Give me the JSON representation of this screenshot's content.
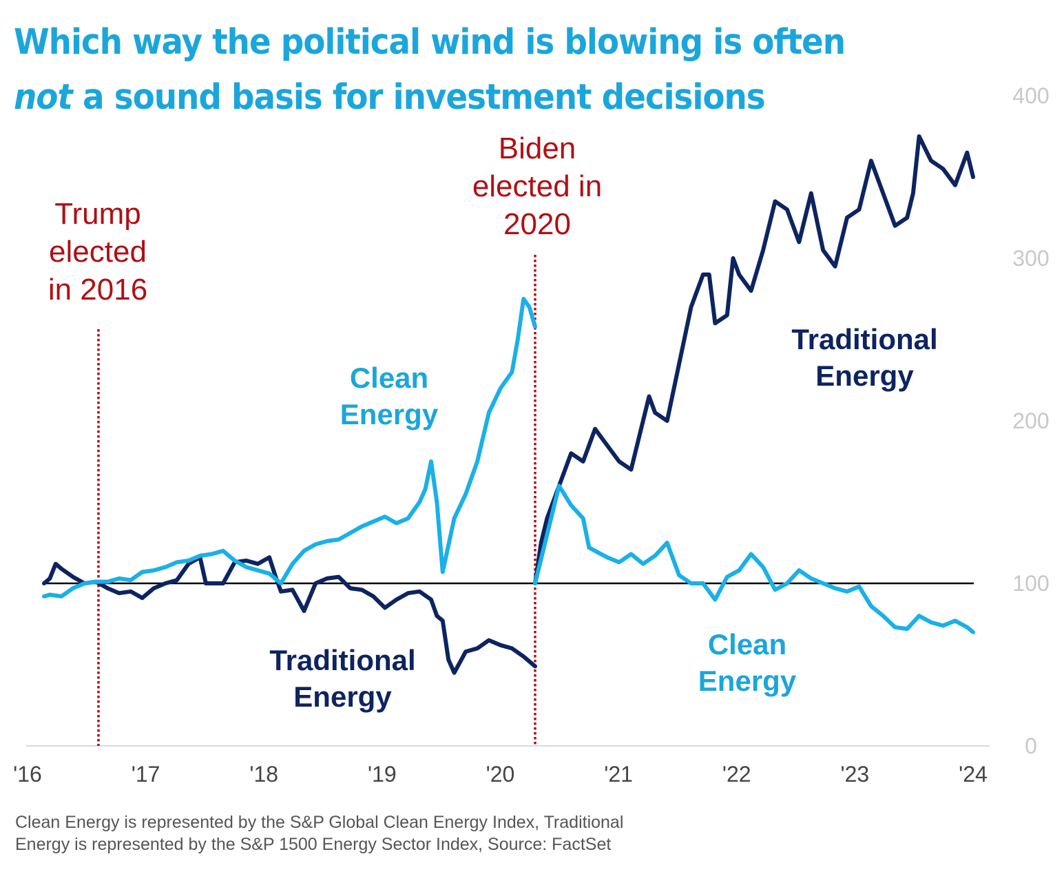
{
  "title": {
    "line1": "Which way the political wind is blowing is often",
    "line2_em": "not",
    "line2_rest": " a sound basis for investment decisions"
  },
  "annotations": {
    "trump": [
      "Trump",
      "elected",
      "in 2016"
    ],
    "biden": [
      "Biden",
      "elected in",
      "2020"
    ],
    "clean_energy_1": [
      "Clean",
      "Energy"
    ],
    "traditional_energy_1": [
      "Traditional",
      "Energy"
    ],
    "traditional_energy_2": [
      "Traditional",
      "Energy"
    ],
    "clean_energy_2": [
      "Clean",
      "Energy"
    ]
  },
  "footnote": {
    "line1": "Clean Energy is represented by the S&P Global Clean Energy Index, Traditional",
    "line2": "Energy is represented by the S&P 1500 Energy Sector Index, Source: FactSet"
  },
  "colors": {
    "clean": "#1ab0e8",
    "traditional": "#0d2461",
    "election_line": "#b10f14",
    "baseline": "#000000",
    "axis": "#d9d9d9",
    "ytick": "#c8c8c8",
    "xtick": "#444444"
  },
  "chart_data": {
    "type": "line",
    "title": "Which way the political wind is blowing is often not a sound basis for investment decisions",
    "xlabel": "",
    "ylabel": "",
    "x_ticks": [
      "'16",
      "'17",
      "'18",
      "'19",
      "'20",
      "'21",
      "'22",
      "'23",
      "'24"
    ],
    "x_range": [
      2016.0,
      2024.0
    ],
    "y_ticks": [
      0,
      100,
      200,
      300,
      400
    ],
    "y_range": [
      0,
      400
    ],
    "y_axis_side": "right",
    "grid": false,
    "baseline": 100,
    "events": [
      {
        "label": "Trump elected in 2016",
        "x": 2016.6
      },
      {
        "label": "Biden elected in 2020",
        "x": 2020.08
      }
    ],
    "series": [
      {
        "name": "Clean Energy",
        "period": "2016-2020",
        "x": [
          2016.15,
          2016.2,
          2016.3,
          2016.4,
          2016.5,
          2016.6,
          2016.7,
          2016.8,
          2016.9,
          2017.0,
          2017.1,
          2017.2,
          2017.3,
          2017.4,
          2017.5,
          2017.6,
          2017.7,
          2017.8,
          2017.9,
          2018.0,
          2018.1,
          2018.2,
          2018.3,
          2018.4,
          2018.5,
          2018.6,
          2018.7,
          2018.8,
          2018.9,
          2019.0,
          2019.1,
          2019.2,
          2019.3,
          2019.4,
          2019.45,
          2019.5,
          2019.55,
          2019.6,
          2019.7,
          2019.8,
          2019.9,
          2020.0,
          2020.1,
          2020.2,
          2020.25,
          2020.3,
          2020.35,
          2020.4
        ],
        "values": [
          92,
          93,
          92,
          97,
          100,
          101,
          101,
          103,
          102,
          107,
          108,
          110,
          113,
          114,
          117,
          118,
          120,
          114,
          110,
          108,
          106,
          100,
          112,
          120,
          124,
          126,
          127,
          131,
          135,
          138,
          141,
          137,
          140,
          150,
          158,
          175,
          150,
          107,
          140,
          155,
          175,
          205,
          220,
          230,
          250,
          275,
          270,
          258
        ]
      },
      {
        "name": "Traditional Energy",
        "period": "2016-2020",
        "x": [
          2016.15,
          2016.2,
          2016.25,
          2016.3,
          2016.4,
          2016.5,
          2016.6,
          2016.7,
          2016.8,
          2016.9,
          2017.0,
          2017.1,
          2017.2,
          2017.3,
          2017.4,
          2017.5,
          2017.55,
          2017.6,
          2017.7,
          2017.8,
          2017.9,
          2018.0,
          2018.1,
          2018.15,
          2018.2,
          2018.3,
          2018.4,
          2018.5,
          2018.6,
          2018.7,
          2018.8,
          2018.9,
          2019.0,
          2019.1,
          2019.2,
          2019.3,
          2019.4,
          2019.5,
          2019.55,
          2019.6,
          2019.65,
          2019.7,
          2019.8,
          2019.9,
          2020.0,
          2020.1,
          2020.2,
          2020.3,
          2020.4
        ],
        "values": [
          100,
          103,
          112,
          109,
          104,
          100,
          101,
          97,
          94,
          95,
          91,
          97,
          100,
          102,
          112,
          116,
          100,
          100,
          100,
          113,
          114,
          112,
          116,
          105,
          95,
          96,
          83,
          100,
          103,
          104,
          97,
          96,
          92,
          85,
          90,
          94,
          95,
          90,
          80,
          77,
          53,
          45,
          58,
          60,
          65,
          62,
          60,
          55,
          49
        ]
      },
      {
        "name": "Clean Energy",
        "period": "2020-2024",
        "x": [
          2020.4,
          2020.45,
          2020.5,
          2020.6,
          2020.7,
          2020.8,
          2020.85,
          2020.9,
          2021.0,
          2021.1,
          2021.2,
          2021.3,
          2021.4,
          2021.5,
          2021.6,
          2021.7,
          2021.8,
          2021.9,
          2022.0,
          2022.1,
          2022.2,
          2022.3,
          2022.4,
          2022.5,
          2022.6,
          2022.7,
          2022.8,
          2022.9,
          2023.0,
          2023.1,
          2023.2,
          2023.3,
          2023.4,
          2023.5,
          2023.6,
          2023.7,
          2023.8,
          2023.9,
          2024.0,
          2024.05
        ],
        "values": [
          100,
          115,
          130,
          160,
          148,
          140,
          122,
          120,
          116,
          113,
          118,
          112,
          117,
          125,
          105,
          100,
          100,
          90,
          104,
          108,
          118,
          110,
          96,
          100,
          108,
          103,
          100,
          97,
          95,
          98,
          86,
          80,
          73,
          72,
          80,
          76,
          74,
          77,
          73,
          70
        ]
      },
      {
        "name": "Traditional Energy",
        "period": "2020-2024",
        "x": [
          2020.4,
          2020.45,
          2020.5,
          2020.55,
          2020.6,
          2020.7,
          2020.8,
          2020.9,
          2021.0,
          2021.1,
          2021.2,
          2021.3,
          2021.35,
          2021.4,
          2021.5,
          2021.6,
          2021.7,
          2021.8,
          2021.85,
          2021.9,
          2022.0,
          2022.05,
          2022.1,
          2022.2,
          2022.3,
          2022.4,
          2022.5,
          2022.6,
          2022.7,
          2022.8,
          2022.9,
          2023.0,
          2023.1,
          2023.2,
          2023.3,
          2023.4,
          2023.5,
          2023.55,
          2023.6,
          2023.7,
          2023.8,
          2023.9,
          2024.0,
          2024.05
        ],
        "values": [
          100,
          125,
          140,
          150,
          160,
          180,
          175,
          195,
          185,
          175,
          170,
          200,
          215,
          205,
          200,
          235,
          270,
          290,
          290,
          260,
          265,
          300,
          290,
          280,
          305,
          335,
          330,
          310,
          340,
          305,
          295,
          325,
          330,
          360,
          340,
          320,
          325,
          340,
          375,
          360,
          355,
          345,
          365,
          350
        ]
      }
    ]
  }
}
